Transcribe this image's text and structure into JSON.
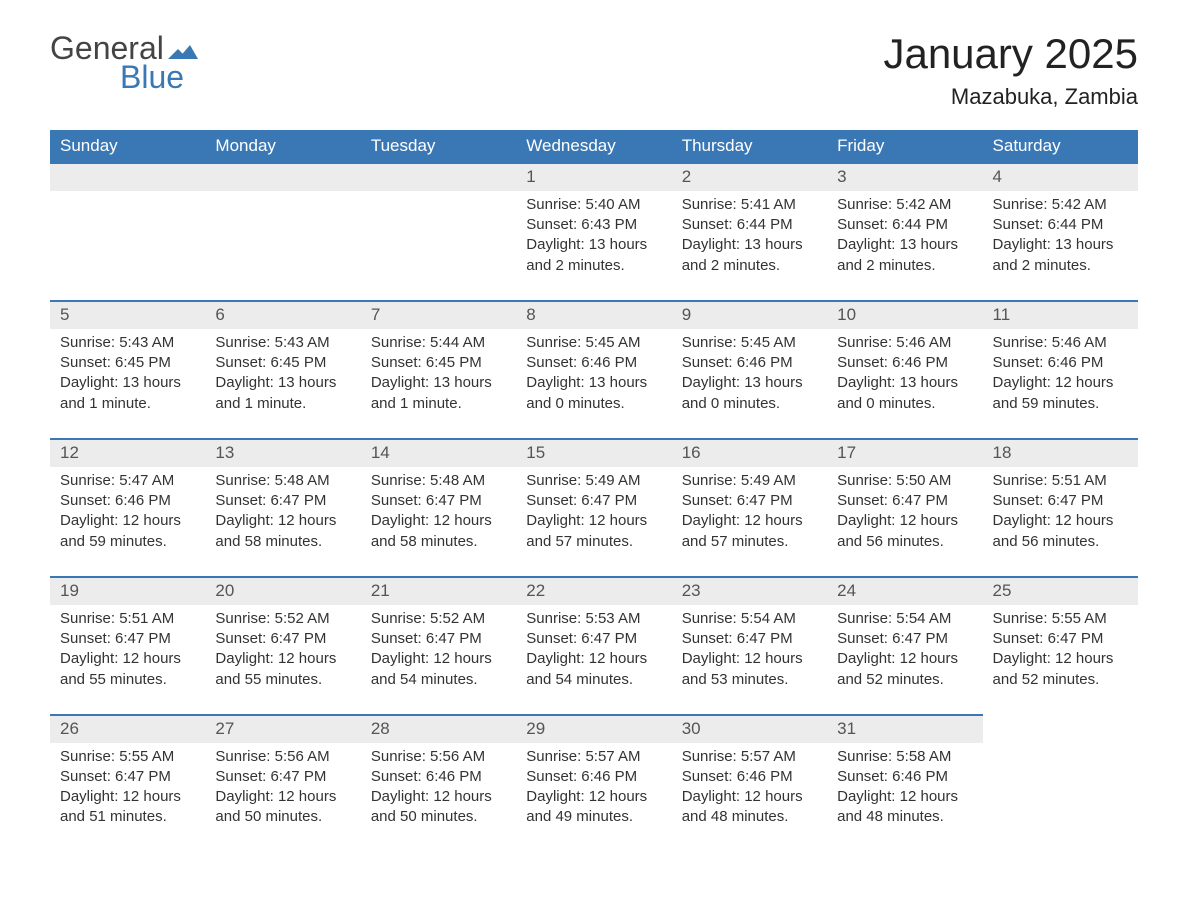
{
  "logo": {
    "text1": "General",
    "text2": "Blue",
    "flag_color": "#3a78b5"
  },
  "title": "January 2025",
  "location": "Mazabuka, Zambia",
  "colors": {
    "header_bg": "#3a78b5",
    "header_text": "#ffffff",
    "daynum_bg": "#ececec",
    "border": "#3a78b5",
    "body_text": "#333333",
    "page_bg": "#ffffff"
  },
  "fonts": {
    "title_size": 42,
    "location_size": 22,
    "header_size": 17,
    "cell_size": 15
  },
  "day_headers": [
    "Sunday",
    "Monday",
    "Tuesday",
    "Wednesday",
    "Thursday",
    "Friday",
    "Saturday"
  ],
  "weeks": [
    [
      null,
      null,
      null,
      {
        "n": "1",
        "sunrise": "Sunrise: 5:40 AM",
        "sunset": "Sunset: 6:43 PM",
        "daylight": "Daylight: 13 hours and 2 minutes."
      },
      {
        "n": "2",
        "sunrise": "Sunrise: 5:41 AM",
        "sunset": "Sunset: 6:44 PM",
        "daylight": "Daylight: 13 hours and 2 minutes."
      },
      {
        "n": "3",
        "sunrise": "Sunrise: 5:42 AM",
        "sunset": "Sunset: 6:44 PM",
        "daylight": "Daylight: 13 hours and 2 minutes."
      },
      {
        "n": "4",
        "sunrise": "Sunrise: 5:42 AM",
        "sunset": "Sunset: 6:44 PM",
        "daylight": "Daylight: 13 hours and 2 minutes."
      }
    ],
    [
      {
        "n": "5",
        "sunrise": "Sunrise: 5:43 AM",
        "sunset": "Sunset: 6:45 PM",
        "daylight": "Daylight: 13 hours and 1 minute."
      },
      {
        "n": "6",
        "sunrise": "Sunrise: 5:43 AM",
        "sunset": "Sunset: 6:45 PM",
        "daylight": "Daylight: 13 hours and 1 minute."
      },
      {
        "n": "7",
        "sunrise": "Sunrise: 5:44 AM",
        "sunset": "Sunset: 6:45 PM",
        "daylight": "Daylight: 13 hours and 1 minute."
      },
      {
        "n": "8",
        "sunrise": "Sunrise: 5:45 AM",
        "sunset": "Sunset: 6:46 PM",
        "daylight": "Daylight: 13 hours and 0 minutes."
      },
      {
        "n": "9",
        "sunrise": "Sunrise: 5:45 AM",
        "sunset": "Sunset: 6:46 PM",
        "daylight": "Daylight: 13 hours and 0 minutes."
      },
      {
        "n": "10",
        "sunrise": "Sunrise: 5:46 AM",
        "sunset": "Sunset: 6:46 PM",
        "daylight": "Daylight: 13 hours and 0 minutes."
      },
      {
        "n": "11",
        "sunrise": "Sunrise: 5:46 AM",
        "sunset": "Sunset: 6:46 PM",
        "daylight": "Daylight: 12 hours and 59 minutes."
      }
    ],
    [
      {
        "n": "12",
        "sunrise": "Sunrise: 5:47 AM",
        "sunset": "Sunset: 6:46 PM",
        "daylight": "Daylight: 12 hours and 59 minutes."
      },
      {
        "n": "13",
        "sunrise": "Sunrise: 5:48 AM",
        "sunset": "Sunset: 6:47 PM",
        "daylight": "Daylight: 12 hours and 58 minutes."
      },
      {
        "n": "14",
        "sunrise": "Sunrise: 5:48 AM",
        "sunset": "Sunset: 6:47 PM",
        "daylight": "Daylight: 12 hours and 58 minutes."
      },
      {
        "n": "15",
        "sunrise": "Sunrise: 5:49 AM",
        "sunset": "Sunset: 6:47 PM",
        "daylight": "Daylight: 12 hours and 57 minutes."
      },
      {
        "n": "16",
        "sunrise": "Sunrise: 5:49 AM",
        "sunset": "Sunset: 6:47 PM",
        "daylight": "Daylight: 12 hours and 57 minutes."
      },
      {
        "n": "17",
        "sunrise": "Sunrise: 5:50 AM",
        "sunset": "Sunset: 6:47 PM",
        "daylight": "Daylight: 12 hours and 56 minutes."
      },
      {
        "n": "18",
        "sunrise": "Sunrise: 5:51 AM",
        "sunset": "Sunset: 6:47 PM",
        "daylight": "Daylight: 12 hours and 56 minutes."
      }
    ],
    [
      {
        "n": "19",
        "sunrise": "Sunrise: 5:51 AM",
        "sunset": "Sunset: 6:47 PM",
        "daylight": "Daylight: 12 hours and 55 minutes."
      },
      {
        "n": "20",
        "sunrise": "Sunrise: 5:52 AM",
        "sunset": "Sunset: 6:47 PM",
        "daylight": "Daylight: 12 hours and 55 minutes."
      },
      {
        "n": "21",
        "sunrise": "Sunrise: 5:52 AM",
        "sunset": "Sunset: 6:47 PM",
        "daylight": "Daylight: 12 hours and 54 minutes."
      },
      {
        "n": "22",
        "sunrise": "Sunrise: 5:53 AM",
        "sunset": "Sunset: 6:47 PM",
        "daylight": "Daylight: 12 hours and 54 minutes."
      },
      {
        "n": "23",
        "sunrise": "Sunrise: 5:54 AM",
        "sunset": "Sunset: 6:47 PM",
        "daylight": "Daylight: 12 hours and 53 minutes."
      },
      {
        "n": "24",
        "sunrise": "Sunrise: 5:54 AM",
        "sunset": "Sunset: 6:47 PM",
        "daylight": "Daylight: 12 hours and 52 minutes."
      },
      {
        "n": "25",
        "sunrise": "Sunrise: 5:55 AM",
        "sunset": "Sunset: 6:47 PM",
        "daylight": "Daylight: 12 hours and 52 minutes."
      }
    ],
    [
      {
        "n": "26",
        "sunrise": "Sunrise: 5:55 AM",
        "sunset": "Sunset: 6:47 PM",
        "daylight": "Daylight: 12 hours and 51 minutes."
      },
      {
        "n": "27",
        "sunrise": "Sunrise: 5:56 AM",
        "sunset": "Sunset: 6:47 PM",
        "daylight": "Daylight: 12 hours and 50 minutes."
      },
      {
        "n": "28",
        "sunrise": "Sunrise: 5:56 AM",
        "sunset": "Sunset: 6:46 PM",
        "daylight": "Daylight: 12 hours and 50 minutes."
      },
      {
        "n": "29",
        "sunrise": "Sunrise: 5:57 AM",
        "sunset": "Sunset: 6:46 PM",
        "daylight": "Daylight: 12 hours and 49 minutes."
      },
      {
        "n": "30",
        "sunrise": "Sunrise: 5:57 AM",
        "sunset": "Sunset: 6:46 PM",
        "daylight": "Daylight: 12 hours and 48 minutes."
      },
      {
        "n": "31",
        "sunrise": "Sunrise: 5:58 AM",
        "sunset": "Sunset: 6:46 PM",
        "daylight": "Daylight: 12 hours and 48 minutes."
      },
      null
    ]
  ]
}
